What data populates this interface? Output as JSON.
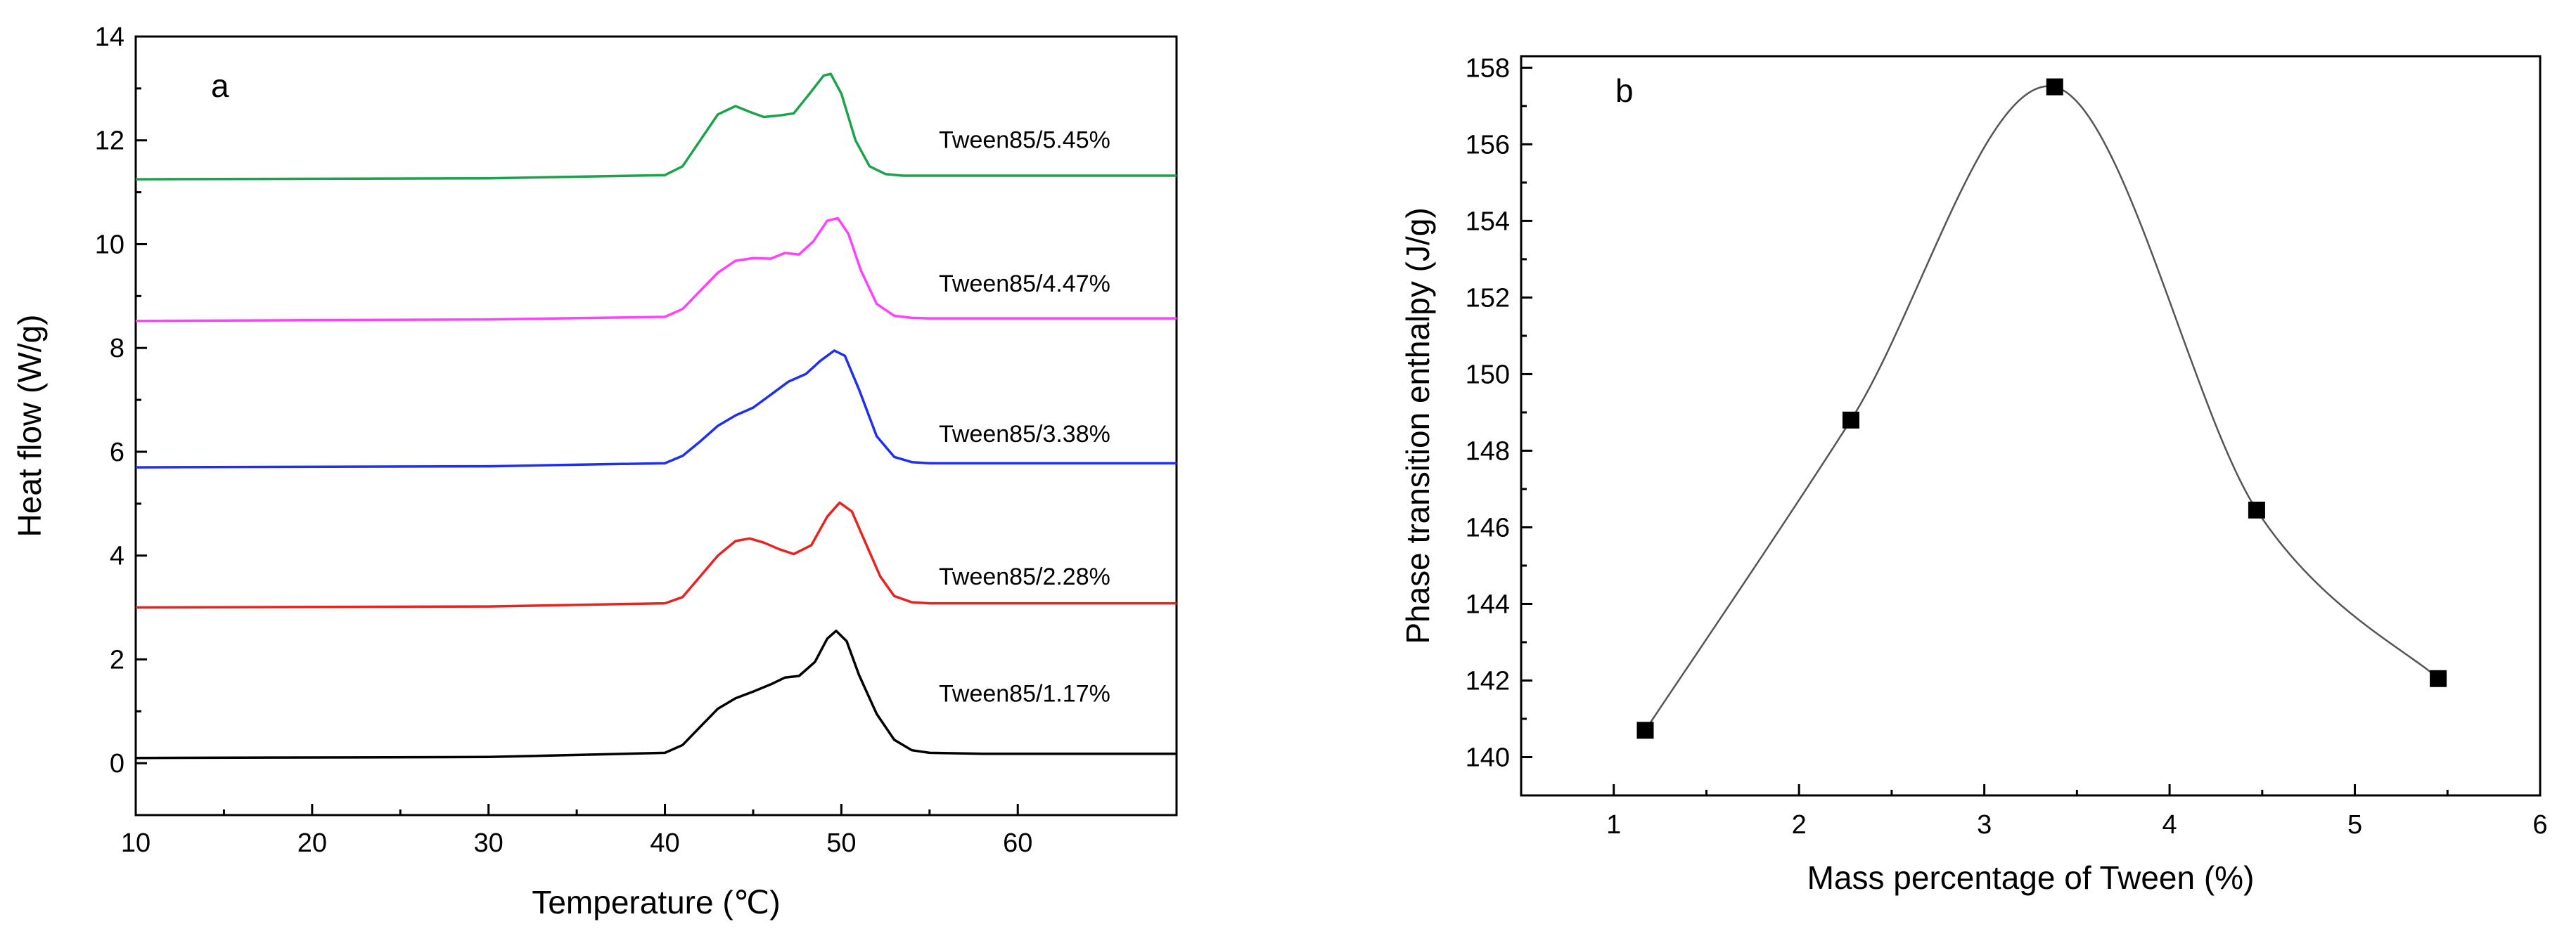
{
  "chart_data": [
    {
      "panel": "a",
      "type": "line",
      "xlabel": "Temperature (℃)",
      "ylabel": "Heat flow (W/g)",
      "xlim": [
        10,
        69
      ],
      "ylim": [
        -1,
        14
      ],
      "xticks": [
        10,
        20,
        30,
        40,
        50,
        60
      ],
      "yticks": [
        0,
        2,
        4,
        6,
        8,
        10,
        12,
        14
      ],
      "series": [
        {
          "name": "Tween85/1.17%",
          "color": "#000000",
          "x": [
            10,
            30,
            40,
            41,
            42,
            43,
            44,
            45,
            46,
            46.8,
            47.6,
            48.5,
            49.2,
            49.7,
            50.3,
            51,
            52,
            53,
            54,
            55,
            58,
            69
          ],
          "y": [
            0.1,
            0.12,
            0.2,
            0.35,
            0.7,
            1.05,
            1.25,
            1.38,
            1.52,
            1.65,
            1.68,
            1.95,
            2.4,
            2.55,
            2.35,
            1.7,
            0.95,
            0.45,
            0.25,
            0.2,
            0.18,
            0.18
          ]
        },
        {
          "name": "Tween85/2.28%",
          "color": "#e8231f",
          "x": [
            10,
            30,
            40,
            41,
            42,
            43,
            44,
            44.8,
            45.6,
            46.5,
            47.3,
            48.3,
            49.2,
            49.9,
            50.6,
            51.3,
            52.2,
            53,
            54,
            55,
            58,
            69
          ],
          "y": [
            3.0,
            3.02,
            3.08,
            3.2,
            3.6,
            4.0,
            4.28,
            4.33,
            4.25,
            4.12,
            4.03,
            4.2,
            4.75,
            5.02,
            4.85,
            4.3,
            3.6,
            3.22,
            3.1,
            3.08,
            3.08,
            3.08
          ]
        },
        {
          "name": "Tween85/3.38%",
          "color": "#1f2ff0",
          "x": [
            10,
            30,
            40,
            41,
            42,
            43,
            44,
            45,
            46,
            47,
            48,
            48.8,
            49.6,
            50.2,
            51,
            52,
            53,
            54,
            55,
            58,
            69
          ],
          "y": [
            5.7,
            5.72,
            5.78,
            5.92,
            6.2,
            6.5,
            6.7,
            6.85,
            7.1,
            7.35,
            7.5,
            7.75,
            7.95,
            7.85,
            7.2,
            6.3,
            5.9,
            5.8,
            5.78,
            5.78,
            5.78
          ]
        },
        {
          "name": "Tween85/4.47%",
          "color": "#ff40ff",
          "x": [
            10,
            30,
            40,
            41,
            42,
            43,
            44,
            45,
            46,
            46.8,
            47.6,
            48.4,
            49.2,
            49.8,
            50.4,
            51.1,
            52,
            53,
            54,
            55,
            58,
            69
          ],
          "y": [
            8.52,
            8.55,
            8.6,
            8.75,
            9.1,
            9.45,
            9.68,
            9.73,
            9.72,
            9.83,
            9.8,
            10.05,
            10.45,
            10.5,
            10.2,
            9.5,
            8.85,
            8.62,
            8.58,
            8.57,
            8.57,
            8.57
          ]
        },
        {
          "name": "Tween85/5.45%",
          "color": "#1aa34a",
          "x": [
            10,
            30,
            40,
            41,
            42,
            43,
            44,
            44.8,
            45.6,
            46.5,
            47.3,
            48.2,
            49,
            49.4,
            50,
            50.8,
            51.6,
            52.5,
            53.5,
            55,
            58,
            69
          ],
          "y": [
            11.25,
            11.27,
            11.33,
            11.5,
            12.0,
            12.5,
            12.66,
            12.55,
            12.45,
            12.48,
            12.52,
            12.9,
            13.25,
            13.28,
            12.9,
            12.0,
            11.5,
            11.35,
            11.32,
            11.32,
            11.32,
            11.32
          ]
        }
      ]
    },
    {
      "panel": "b",
      "type": "scatter",
      "xlabel": "Mass percentage of Tween (%)",
      "ylabel": "Phase transition enthalpy (J/g)",
      "xlim": [
        0.5,
        6
      ],
      "ylim": [
        139,
        158.3
      ],
      "xticks": [
        1,
        2,
        3,
        4,
        5,
        6
      ],
      "yticks": [
        140,
        142,
        144,
        146,
        148,
        150,
        152,
        154,
        156,
        158
      ],
      "series": [
        {
          "name": "Phase transition enthalpy",
          "color": "#000000",
          "marker": "square",
          "x": [
            1.17,
            2.28,
            3.38,
            4.47,
            5.45
          ],
          "y": [
            140.7,
            148.8,
            157.5,
            146.45,
            142.05
          ]
        }
      ]
    }
  ]
}
